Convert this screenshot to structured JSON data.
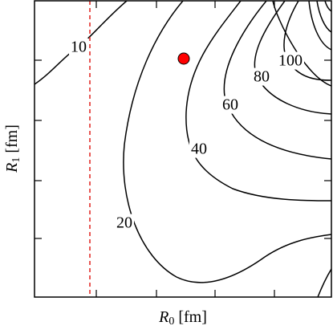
{
  "chart_data": {
    "type": "contour",
    "x_label": {
      "symbol": "R",
      "subscript": "0",
      "unit": "[fm]"
    },
    "y_label": {
      "symbol": "R",
      "subscript": "1",
      "unit": "[fm]"
    },
    "levels": [
      10,
      20,
      40,
      60,
      80,
      100
    ],
    "color": "#000000"
  }
}
